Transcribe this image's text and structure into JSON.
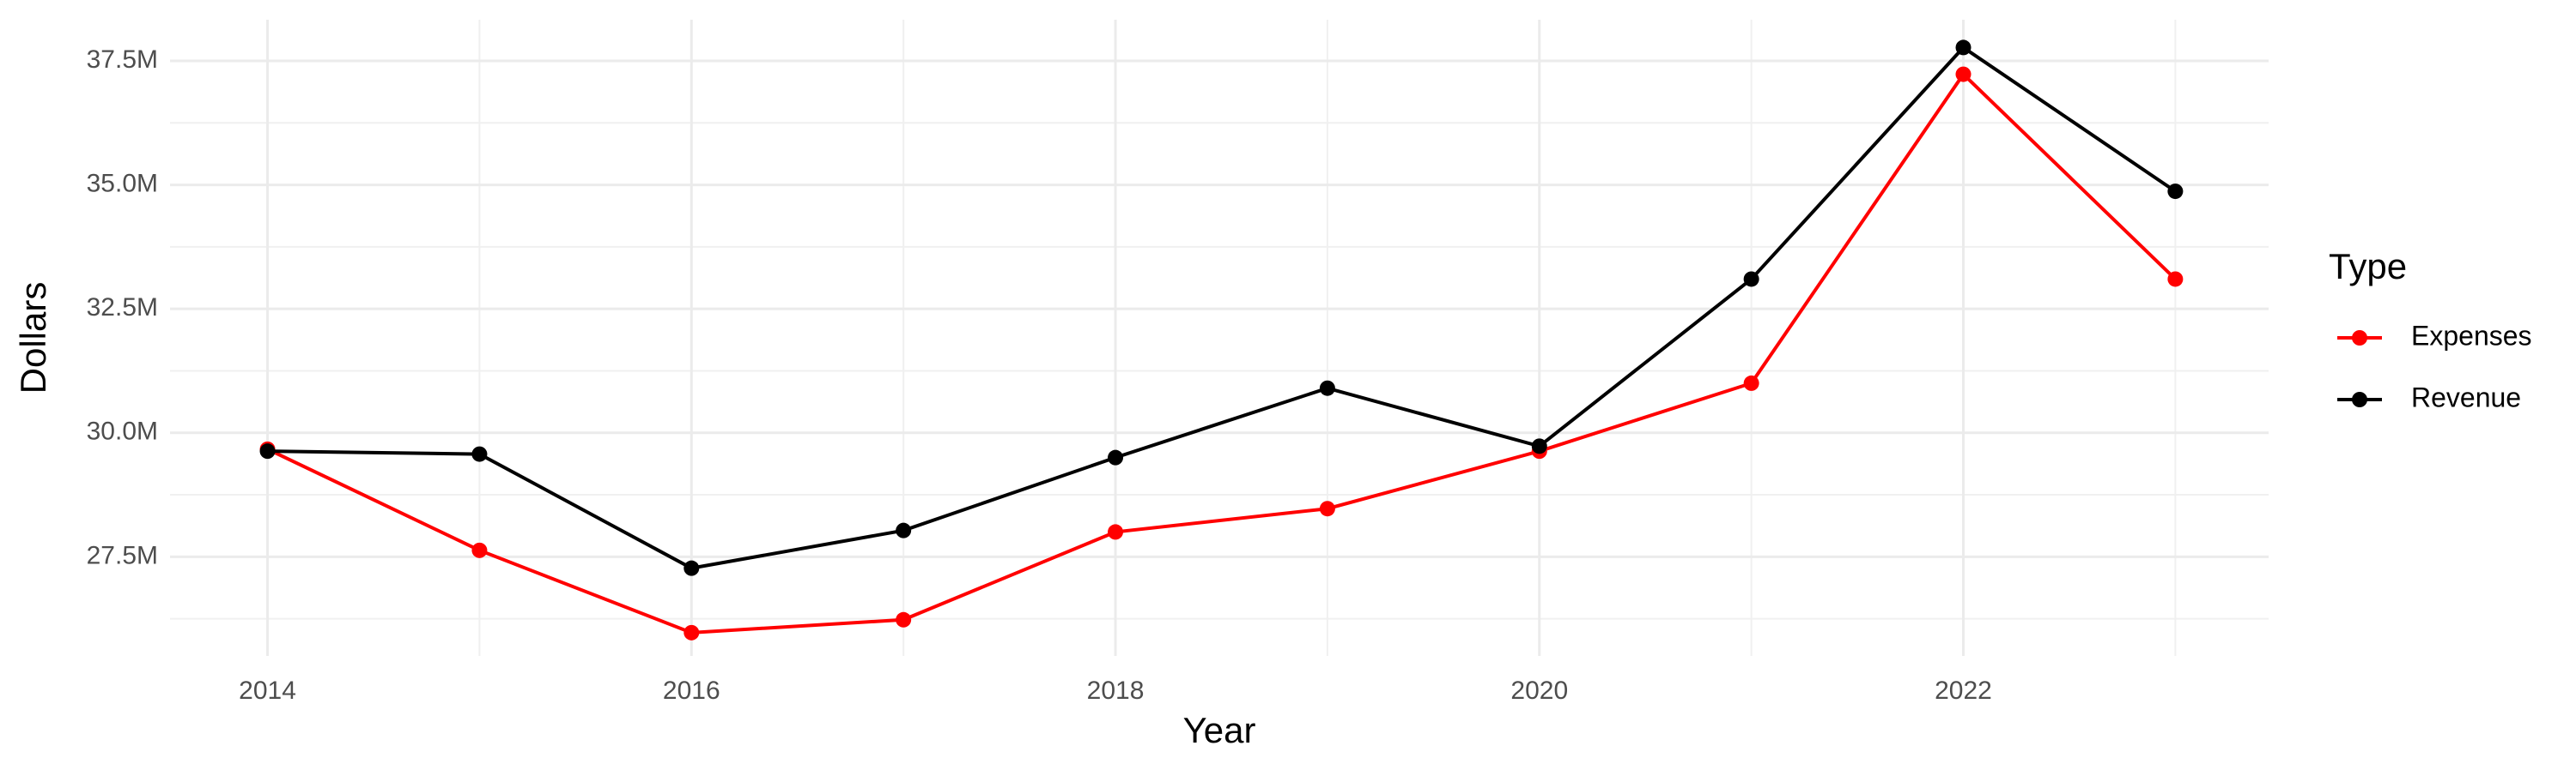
{
  "chart_data": {
    "type": "line",
    "x_label": "Year",
    "y_label": "Dollars",
    "legend_title": "Type",
    "x": [
      2014,
      2015,
      2016,
      2017,
      2018,
      2019,
      2020,
      2021,
      2022,
      2023
    ],
    "series": [
      {
        "name": "Expenses",
        "color": "#ff0000",
        "values": [
          29670000,
          27630000,
          25970000,
          26230000,
          28000000,
          28470000,
          29630000,
          31000000,
          37230000,
          33100000
        ]
      },
      {
        "name": "Revenue",
        "color": "#000000",
        "values": [
          29630000,
          29570000,
          27270000,
          28030000,
          29500000,
          30900000,
          29730000,
          33100000,
          37770000,
          34870000
        ]
      }
    ],
    "xlim": [
      2013.54,
      2023.44
    ],
    "xticks": [
      2014,
      2016,
      2018,
      2020,
      2022
    ],
    "ylim": [
      25500000,
      38330000
    ],
    "yticks": [
      {
        "value": 27500000,
        "label": "27.5M"
      },
      {
        "value": 30000000,
        "label": "30.0M"
      },
      {
        "value": 32500000,
        "label": "32.5M"
      },
      {
        "value": 35000000,
        "label": "35.0M"
      },
      {
        "value": 37500000,
        "label": "37.5M"
      }
    ],
    "grid": true,
    "legend": "right"
  }
}
